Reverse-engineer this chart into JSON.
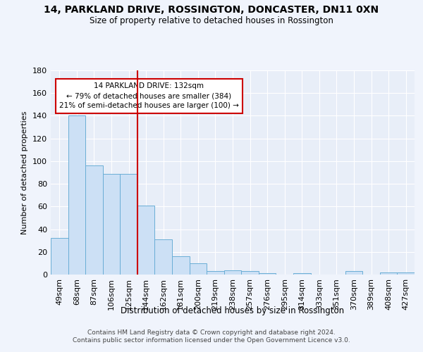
{
  "title": "14, PARKLAND DRIVE, ROSSINGTON, DONCASTER, DN11 0XN",
  "subtitle": "Size of property relative to detached houses in Rossington",
  "xlabel": "Distribution of detached houses by size in Rossington",
  "ylabel": "Number of detached properties",
  "categories": [
    "49sqm",
    "68sqm",
    "87sqm",
    "106sqm",
    "125sqm",
    "144sqm",
    "162sqm",
    "181sqm",
    "200sqm",
    "219sqm",
    "238sqm",
    "257sqm",
    "276sqm",
    "295sqm",
    "314sqm",
    "333sqm",
    "351sqm",
    "370sqm",
    "389sqm",
    "408sqm",
    "427sqm"
  ],
  "values": [
    32,
    140,
    96,
    89,
    89,
    61,
    31,
    16,
    10,
    3,
    4,
    3,
    1,
    0,
    1,
    0,
    0,
    3,
    0,
    2,
    2
  ],
  "bar_color": "#cce0f5",
  "bar_edge_color": "#6aaed6",
  "red_line_index": 5,
  "red_line_color": "#cc0000",
  "annotation_text": "14 PARKLAND DRIVE: 132sqm\n← 79% of detached houses are smaller (384)\n21% of semi-detached houses are larger (100) →",
  "annotation_box_color": "#ffffff",
  "annotation_box_edge_color": "#cc0000",
  "ylim": [
    0,
    180
  ],
  "yticks": [
    0,
    20,
    40,
    60,
    80,
    100,
    120,
    140,
    160,
    180
  ],
  "background_color": "#e8eef8",
  "grid_color": "#ffffff",
  "fig_background": "#f0f4fc",
  "footer_line1": "Contains HM Land Registry data © Crown copyright and database right 2024.",
  "footer_line2": "Contains public sector information licensed under the Open Government Licence v3.0."
}
